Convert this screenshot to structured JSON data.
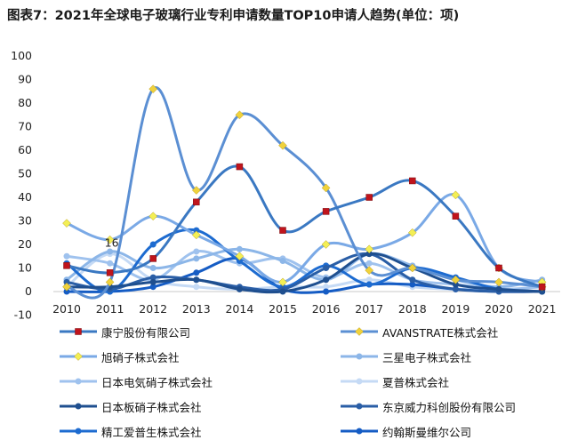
{
  "chart_data": {
    "type": "line",
    "title": "图表7：2021年全球电子玻璃行业专利申请数量TOP10申请人趋势(单位：项)",
    "x": [
      "2010",
      "2011",
      "2012",
      "2013",
      "2014",
      "2015",
      "2016",
      "2017",
      "2018",
      "2019",
      "2020",
      "2021"
    ],
    "ylim": [
      -10,
      100
    ],
    "yticks": [
      -10,
      0,
      10,
      20,
      30,
      40,
      50,
      60,
      70,
      80,
      90,
      100
    ],
    "legend_position": "bottom",
    "series": [
      {
        "name": "康宁股份有限公司",
        "color": "#3a78c2",
        "marker": "square",
        "marker_color": "#c0141c",
        "values": [
          11,
          8,
          14,
          38,
          53,
          26,
          34,
          40,
          47,
          32,
          10,
          2
        ]
      },
      {
        "name": "AVANSTRATE株式会社",
        "color": "#5b8fd3",
        "marker": "diamond",
        "marker_color": "#f0d23c",
        "values": [
          2,
          4,
          86,
          43,
          75,
          62,
          44,
          9,
          10,
          5,
          4,
          2
        ]
      },
      {
        "name": "旭硝子株式会社",
        "color": "#7aa9e6",
        "marker": "diamond",
        "marker_color": "#f3ef55",
        "values": [
          29,
          22,
          32,
          24,
          15,
          4,
          20,
          18,
          25,
          41,
          10,
          4
        ]
      },
      {
        "name": "三星电子株式会社",
        "color": "#8cb6e8",
        "marker": "circle",
        "marker_color": "#8cb6e8",
        "values": [
          5,
          17,
          10,
          14,
          18,
          13,
          5,
          16,
          11,
          5,
          2,
          5
        ]
      },
      {
        "name": "日本电気硝子株式会社",
        "color": "#9fc2ee",
        "marker": "circle",
        "marker_color": "#9fc2ee",
        "values": [
          15,
          12,
          5,
          17,
          12,
          14,
          6,
          12,
          5,
          3,
          1,
          2
        ]
      },
      {
        "name": "夏普株式会社",
        "color": "#c5daf5",
        "marker": "circle",
        "marker_color": "#c5daf5",
        "values": [
          2,
          16,
          5,
          2,
          1,
          2,
          2,
          5,
          2,
          1,
          1,
          0
        ]
      },
      {
        "name": "日本板硝子株式会社",
        "color": "#1f4f8f",
        "marker": "circle",
        "marker_color": "#1f4f8f",
        "values": [
          2,
          2,
          4,
          5,
          1,
          0,
          5,
          16,
          10,
          3,
          1,
          0
        ]
      },
      {
        "name": "东京威力科创股份有限公司",
        "color": "#2a5ea6",
        "marker": "circle",
        "marker_color": "#2a5ea6",
        "values": [
          4,
          1,
          6,
          5,
          2,
          1,
          10,
          16,
          5,
          1,
          0,
          0
        ]
      },
      {
        "name": "精工爱普生株式会社",
        "color": "#1d6bd0",
        "marker": "circle",
        "marker_color": "#1d6bd0",
        "values": [
          12,
          0,
          20,
          26,
          13,
          2,
          11,
          3,
          10,
          6,
          1,
          0
        ]
      },
      {
        "name": "约翰斯曼维尔公司",
        "color": "#155cc4",
        "marker": "circle",
        "marker_color": "#155cc4",
        "values": [
          0,
          0,
          2,
          8,
          14,
          1,
          0,
          3,
          3,
          1,
          0,
          0
        ]
      }
    ],
    "annotations": [
      {
        "x": "2011",
        "y": 16,
        "text": "16"
      }
    ],
    "legend_labels": [
      "康宁股份有限公司",
      "AVANSTRATE株式会社",
      "旭硝子株式会社",
      "三星电子株式会社",
      "日本电気硝子株式会社",
      "夏普株式会社",
      "日本板硝子株式会社",
      "东京威力科创股份有限公司",
      "精工爱普生株式会社",
      "约翰斯曼维尔公司"
    ]
  }
}
